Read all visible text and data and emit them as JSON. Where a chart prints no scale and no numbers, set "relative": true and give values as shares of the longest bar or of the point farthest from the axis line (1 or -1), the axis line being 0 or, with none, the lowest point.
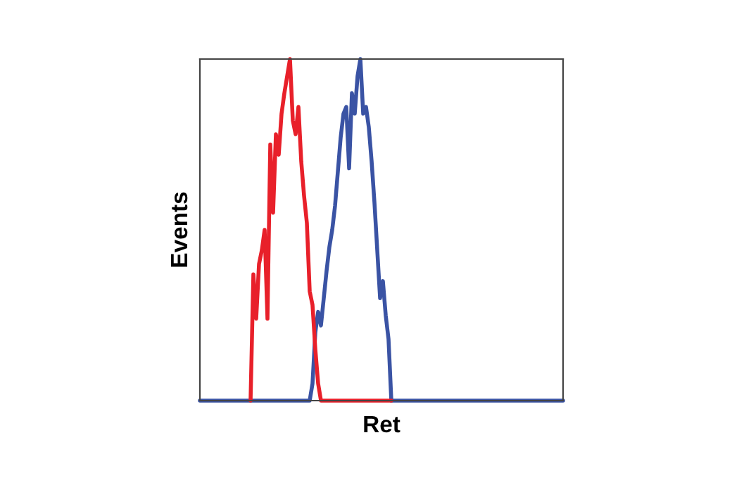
{
  "chart_data": {
    "type": "line",
    "xlabel": "Ret",
    "ylabel": "Events",
    "relative": true,
    "legend": false,
    "grid": false,
    "categories": [
      null,
      null,
      null,
      null,
      null,
      null,
      null,
      null,
      null,
      null,
      null,
      null,
      null,
      null,
      null,
      null,
      null,
      null,
      null,
      null,
      null,
      null,
      null,
      null,
      null,
      null,
      null,
      null,
      null,
      null,
      null,
      null,
      null,
      null,
      null,
      null,
      null,
      null,
      null,
      null,
      null,
      null,
      null,
      null,
      null,
      null,
      null,
      null,
      null,
      null,
      null,
      null,
      null,
      null,
      null,
      null,
      null,
      null,
      null,
      null,
      null,
      null,
      null,
      null,
      null,
      null,
      null,
      null,
      null,
      null,
      null,
      null,
      null,
      null,
      null,
      null,
      null,
      null,
      null,
      null,
      null,
      null,
      null,
      null,
      null,
      null,
      null,
      null,
      null,
      null,
      null,
      null,
      null,
      null,
      null,
      null,
      null,
      null,
      null,
      null,
      null,
      null,
      null,
      null,
      null,
      null,
      null,
      null,
      null,
      null,
      null,
      null,
      null,
      null,
      null,
      null,
      null,
      null,
      null,
      null,
      null,
      null,
      null,
      null,
      null,
      null,
      null,
      null,
      null,
      null
    ],
    "series": [
      {
        "color": "#3a53a4",
        "values": [
          0,
          0,
          0,
          0,
          0,
          0,
          0,
          0,
          0,
          0,
          0,
          0,
          0,
          0,
          0,
          0,
          0,
          0,
          0,
          0,
          0,
          0,
          0,
          0,
          0,
          0,
          0,
          0,
          0,
          0,
          0,
          0,
          0,
          0,
          0,
          0,
          0,
          0,
          0,
          0,
          0.05,
          0.2,
          0.26,
          0.22,
          0.3,
          0.38,
          0.45,
          0.5,
          0.57,
          0.67,
          0.77,
          0.84,
          0.86,
          0.68,
          0.9,
          0.84,
          0.95,
          1.0,
          0.84,
          0.86,
          0.8,
          0.7,
          0.58,
          0.44,
          0.3,
          0.35,
          0.25,
          0.18,
          0,
          0,
          0,
          0,
          0,
          0,
          0,
          0,
          0,
          0,
          0,
          0,
          0,
          0,
          0,
          0,
          0,
          0,
          0,
          0,
          0,
          0,
          0,
          0,
          0,
          0,
          0,
          0,
          0,
          0,
          0,
          0,
          0,
          0,
          0,
          0,
          0,
          0,
          0,
          0,
          0,
          0,
          0,
          0,
          0,
          0,
          0,
          0,
          0,
          0,
          0,
          0,
          0,
          0,
          0,
          0,
          0,
          0,
          0,
          0,
          0,
          0
        ]
      },
      {
        "color": "#e8202a",
        "values": [
          null,
          null,
          null,
          null,
          null,
          null,
          null,
          null,
          null,
          null,
          null,
          null,
          null,
          null,
          null,
          null,
          null,
          null,
          0,
          0.37,
          0.24,
          0.4,
          0.44,
          0.5,
          0.24,
          0.75,
          0.55,
          0.78,
          0.72,
          0.84,
          0.9,
          0.95,
          1.0,
          0.82,
          0.78,
          0.86,
          0.7,
          0.6,
          0.52,
          0.32,
          0.28,
          0.15,
          0.05,
          0,
          0,
          0,
          0,
          0,
          0,
          0,
          0,
          0,
          0,
          0,
          0,
          0,
          0,
          0,
          0,
          0,
          0,
          0,
          0,
          0,
          0,
          0,
          0,
          0,
          0,
          null,
          null,
          null,
          null,
          null,
          null,
          null,
          null,
          null,
          null,
          null,
          null,
          null,
          null,
          null,
          null,
          null,
          null,
          null,
          null,
          null,
          null,
          null,
          null,
          null,
          null,
          null,
          null,
          null,
          null,
          null,
          null,
          null,
          null,
          null,
          null,
          null,
          null,
          null,
          null,
          null,
          null,
          null,
          null,
          null,
          null,
          null,
          null,
          null,
          null,
          null,
          null,
          null,
          null,
          null,
          null,
          null,
          null,
          null,
          null,
          null
        ]
      }
    ]
  }
}
